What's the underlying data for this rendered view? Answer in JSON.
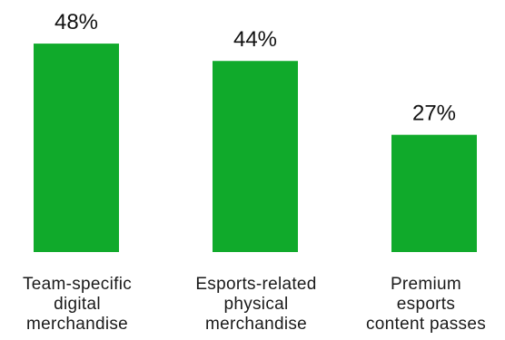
{
  "chart_data": {
    "type": "bar",
    "categories": [
      "Team-specific digital merchandise",
      "Esports-related physical merchandise",
      "Premium esports content passes"
    ],
    "category_lines": [
      [
        "Team-specific",
        "digital",
        "merchandise"
      ],
      [
        "Esports-related",
        "physical",
        "merchandise"
      ],
      [
        "Premium",
        "esports",
        "content passes"
      ]
    ],
    "values": [
      48,
      44,
      27
    ],
    "value_labels": [
      "48%",
      "44%",
      "27%"
    ],
    "unit": "%",
    "ylim": [
      0,
      50
    ],
    "grid": false,
    "legend": "none",
    "bar_color": "#10aa2b",
    "title": "",
    "xlabel": "",
    "ylabel": ""
  }
}
